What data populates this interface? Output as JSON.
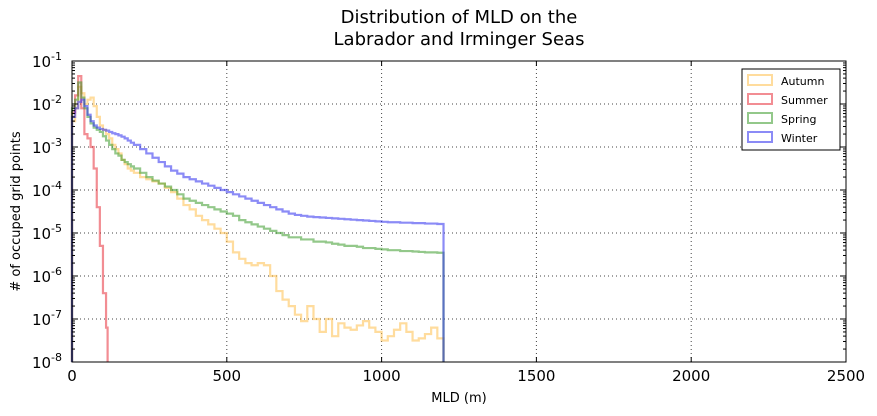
{
  "chart_data": {
    "type": "histogram-step",
    "title_lines": [
      "Distribution of MLD on the",
      "Labrador and Irminger Seas"
    ],
    "xlabel": "MLD (m)",
    "ylabel": "# of occuped grid points",
    "xlim": [
      0,
      2500
    ],
    "ylim_log10": [
      -8,
      -1
    ],
    "yscale": "log",
    "grid": true,
    "legend_position": "top-right",
    "x_ticks": [
      {
        "value": 0,
        "label": "0"
      },
      {
        "value": 500,
        "label": "500"
      },
      {
        "value": 1000,
        "label": "1000"
      },
      {
        "value": 1500,
        "label": "1500"
      },
      {
        "value": 2000,
        "label": "2000"
      },
      {
        "value": 2500,
        "label": "2500"
      }
    ],
    "y_ticks": [
      {
        "exp": -1,
        "base": "10",
        "sup": "-1"
      },
      {
        "exp": -2,
        "base": "10",
        "sup": "-2"
      },
      {
        "exp": -3,
        "base": "10",
        "sup": "-3"
      },
      {
        "exp": -4,
        "base": "10",
        "sup": "-4"
      },
      {
        "exp": -5,
        "base": "10",
        "sup": "-5"
      },
      {
        "exp": -6,
        "base": "10",
        "sup": "-6"
      },
      {
        "exp": -7,
        "base": "10",
        "sup": "-7"
      },
      {
        "exp": -8,
        "base": "10",
        "sup": "-8"
      }
    ],
    "series": [
      {
        "name": "Autumn",
        "color": "#ffc04d",
        "points": [
          [
            0,
            -8
          ],
          [
            0,
            -2.4
          ],
          [
            10,
            -2.1
          ],
          [
            20,
            -1.6
          ],
          [
            30,
            -1.75
          ],
          [
            40,
            -2.0
          ],
          [
            50,
            -1.9
          ],
          [
            60,
            -1.85
          ],
          [
            70,
            -2.05
          ],
          [
            80,
            -2.3
          ],
          [
            90,
            -2.5
          ],
          [
            100,
            -2.6
          ],
          [
            110,
            -2.7
          ],
          [
            120,
            -2.8
          ],
          [
            130,
            -2.95
          ],
          [
            140,
            -3.05
          ],
          [
            150,
            -3.15
          ],
          [
            160,
            -3.3
          ],
          [
            170,
            -3.4
          ],
          [
            180,
            -3.5
          ],
          [
            190,
            -3.55
          ],
          [
            200,
            -3.6
          ],
          [
            220,
            -3.7
          ],
          [
            240,
            -3.75
          ],
          [
            260,
            -3.8
          ],
          [
            280,
            -3.85
          ],
          [
            300,
            -3.95
          ],
          [
            320,
            -4.05
          ],
          [
            340,
            -4.2
          ],
          [
            360,
            -4.35
          ],
          [
            380,
            -4.45
          ],
          [
            400,
            -4.6
          ],
          [
            420,
            -4.7
          ],
          [
            440,
            -4.8
          ],
          [
            460,
            -4.9
          ],
          [
            480,
            -5.0
          ],
          [
            500,
            -5.2
          ],
          [
            520,
            -5.45
          ],
          [
            540,
            -5.6
          ],
          [
            560,
            -5.7
          ],
          [
            580,
            -5.75
          ],
          [
            600,
            -5.7
          ],
          [
            620,
            -5.75
          ],
          [
            640,
            -6.0
          ],
          [
            660,
            -6.35
          ],
          [
            680,
            -6.55
          ],
          [
            700,
            -6.7
          ],
          [
            720,
            -6.9
          ],
          [
            740,
            -7.05
          ],
          [
            760,
            -6.7
          ],
          [
            780,
            -7.0
          ],
          [
            800,
            -7.3
          ],
          [
            820,
            -7.0
          ],
          [
            840,
            -7.4
          ],
          [
            860,
            -7.1
          ],
          [
            880,
            -7.2
          ],
          [
            900,
            -7.25
          ],
          [
            920,
            -7.15
          ],
          [
            940,
            -7.05
          ],
          [
            960,
            -7.2
          ],
          [
            980,
            -7.3
          ],
          [
            1000,
            -7.5
          ],
          [
            1020,
            -7.4
          ],
          [
            1040,
            -7.25
          ],
          [
            1060,
            -7.1
          ],
          [
            1080,
            -7.3
          ],
          [
            1100,
            -7.5
          ],
          [
            1120,
            -7.45
          ],
          [
            1140,
            -7.35
          ],
          [
            1160,
            -7.2
          ],
          [
            1180,
            -7.45
          ],
          [
            1200,
            -8
          ]
        ]
      },
      {
        "name": "Summer",
        "color": "#e8303a",
        "points": [
          [
            0,
            -8
          ],
          [
            0,
            -2.2
          ],
          [
            10,
            -1.8
          ],
          [
            20,
            -1.35
          ],
          [
            30,
            -2.1
          ],
          [
            40,
            -2.7
          ],
          [
            50,
            -2.8
          ],
          [
            60,
            -3.0
          ],
          [
            70,
            -3.5
          ],
          [
            80,
            -4.4
          ],
          [
            90,
            -5.3
          ],
          [
            100,
            -6.4
          ],
          [
            110,
            -7.2
          ],
          [
            115,
            -8
          ]
        ]
      },
      {
        "name": "Spring",
        "color": "#3a9a2a",
        "points": [
          [
            0,
            -8
          ],
          [
            0,
            -2.1
          ],
          [
            10,
            -1.9
          ],
          [
            20,
            -1.5
          ],
          [
            30,
            -1.85
          ],
          [
            40,
            -2.1
          ],
          [
            50,
            -2.3
          ],
          [
            60,
            -2.45
          ],
          [
            70,
            -2.55
          ],
          [
            80,
            -2.6
          ],
          [
            90,
            -2.65
          ],
          [
            100,
            -2.75
          ],
          [
            110,
            -2.85
          ],
          [
            120,
            -2.95
          ],
          [
            130,
            -3.05
          ],
          [
            140,
            -3.15
          ],
          [
            150,
            -3.2
          ],
          [
            160,
            -3.3
          ],
          [
            170,
            -3.35
          ],
          [
            180,
            -3.4
          ],
          [
            190,
            -3.45
          ],
          [
            200,
            -3.5
          ],
          [
            220,
            -3.6
          ],
          [
            240,
            -3.7
          ],
          [
            260,
            -3.78
          ],
          [
            280,
            -3.85
          ],
          [
            300,
            -3.92
          ],
          [
            320,
            -4.0
          ],
          [
            340,
            -4.1
          ],
          [
            360,
            -4.2
          ],
          [
            380,
            -4.25
          ],
          [
            400,
            -4.3
          ],
          [
            420,
            -4.35
          ],
          [
            440,
            -4.4
          ],
          [
            460,
            -4.45
          ],
          [
            480,
            -4.5
          ],
          [
            500,
            -4.55
          ],
          [
            520,
            -4.6
          ],
          [
            540,
            -4.7
          ],
          [
            560,
            -4.75
          ],
          [
            580,
            -4.8
          ],
          [
            600,
            -4.85
          ],
          [
            620,
            -4.9
          ],
          [
            640,
            -4.95
          ],
          [
            660,
            -5.0
          ],
          [
            680,
            -5.05
          ],
          [
            700,
            -5.1
          ],
          [
            720,
            -5.1
          ],
          [
            740,
            -5.15
          ],
          [
            760,
            -5.15
          ],
          [
            780,
            -5.2
          ],
          [
            800,
            -5.2
          ],
          [
            820,
            -5.22
          ],
          [
            840,
            -5.25
          ],
          [
            860,
            -5.27
          ],
          [
            880,
            -5.3
          ],
          [
            900,
            -5.3
          ],
          [
            920,
            -5.32
          ],
          [
            940,
            -5.35
          ],
          [
            960,
            -5.35
          ],
          [
            980,
            -5.37
          ],
          [
            1000,
            -5.38
          ],
          [
            1020,
            -5.4
          ],
          [
            1040,
            -5.4
          ],
          [
            1060,
            -5.42
          ],
          [
            1080,
            -5.42
          ],
          [
            1100,
            -5.43
          ],
          [
            1120,
            -5.44
          ],
          [
            1140,
            -5.45
          ],
          [
            1160,
            -5.45
          ],
          [
            1180,
            -5.46
          ],
          [
            1200,
            -8
          ]
        ]
      },
      {
        "name": "Winter",
        "color": "#2b2bee",
        "points": [
          [
            0,
            -8
          ],
          [
            0,
            -2.3
          ],
          [
            10,
            -2.1
          ],
          [
            20,
            -1.95
          ],
          [
            30,
            -1.9
          ],
          [
            40,
            -2.05
          ],
          [
            50,
            -2.25
          ],
          [
            60,
            -2.4
          ],
          [
            70,
            -2.5
          ],
          [
            80,
            -2.55
          ],
          [
            90,
            -2.58
          ],
          [
            100,
            -2.6
          ],
          [
            110,
            -2.62
          ],
          [
            120,
            -2.65
          ],
          [
            130,
            -2.68
          ],
          [
            140,
            -2.7
          ],
          [
            150,
            -2.73
          ],
          [
            160,
            -2.76
          ],
          [
            170,
            -2.8
          ],
          [
            180,
            -2.85
          ],
          [
            190,
            -2.9
          ],
          [
            200,
            -2.95
          ],
          [
            220,
            -3.05
          ],
          [
            240,
            -3.15
          ],
          [
            260,
            -3.25
          ],
          [
            280,
            -3.35
          ],
          [
            300,
            -3.45
          ],
          [
            320,
            -3.55
          ],
          [
            340,
            -3.62
          ],
          [
            360,
            -3.7
          ],
          [
            380,
            -3.75
          ],
          [
            400,
            -3.8
          ],
          [
            420,
            -3.85
          ],
          [
            440,
            -3.9
          ],
          [
            460,
            -3.95
          ],
          [
            480,
            -4.0
          ],
          [
            500,
            -4.05
          ],
          [
            520,
            -4.1
          ],
          [
            540,
            -4.15
          ],
          [
            560,
            -4.2
          ],
          [
            580,
            -4.25
          ],
          [
            600,
            -4.3
          ],
          [
            620,
            -4.35
          ],
          [
            640,
            -4.4
          ],
          [
            660,
            -4.45
          ],
          [
            680,
            -4.5
          ],
          [
            700,
            -4.55
          ],
          [
            720,
            -4.58
          ],
          [
            740,
            -4.6
          ],
          [
            760,
            -4.62
          ],
          [
            780,
            -4.63
          ],
          [
            800,
            -4.64
          ],
          [
            820,
            -4.65
          ],
          [
            840,
            -4.66
          ],
          [
            860,
            -4.67
          ],
          [
            880,
            -4.68
          ],
          [
            900,
            -4.69
          ],
          [
            920,
            -4.7
          ],
          [
            940,
            -4.71
          ],
          [
            960,
            -4.72
          ],
          [
            980,
            -4.73
          ],
          [
            1000,
            -4.74
          ],
          [
            1020,
            -4.75
          ],
          [
            1040,
            -4.75
          ],
          [
            1060,
            -4.76
          ],
          [
            1080,
            -4.76
          ],
          [
            1100,
            -4.77
          ],
          [
            1120,
            -4.77
          ],
          [
            1140,
            -4.78
          ],
          [
            1160,
            -4.78
          ],
          [
            1180,
            -4.79
          ],
          [
            1200,
            -8
          ]
        ]
      }
    ]
  }
}
